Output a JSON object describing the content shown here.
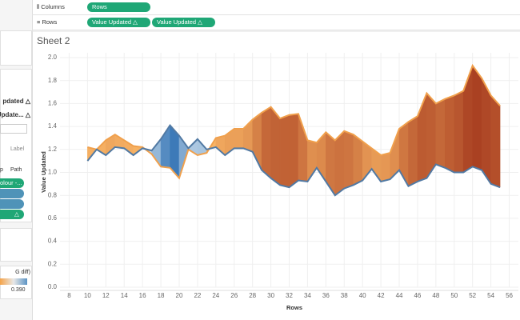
{
  "shelves": {
    "columns_label": "Columns",
    "columns_pills": [
      "Rows"
    ],
    "rows_label": "Rows",
    "rows_pills": [
      "Value Updated △",
      "Value Updated △"
    ]
  },
  "side_panel": {
    "field_1": "pdated △",
    "field_2": "Update... △",
    "mark_label": "Label",
    "mark_path": "Path",
    "mark_partial": "p",
    "color_pill": "olour -...",
    "pill_delta": "△",
    "legend_title": "G diff)",
    "legend_max": "0.390"
  },
  "chart_data": {
    "type": "area_between",
    "title": "Sheet 2",
    "y_label": "Value Updated",
    "x_label": "Rows",
    "x": [
      10,
      11,
      12,
      13,
      14,
      15,
      16,
      17,
      18,
      19,
      20,
      21,
      22,
      23,
      24,
      25,
      26,
      27,
      28,
      29,
      30,
      31,
      32,
      33,
      34,
      35,
      36,
      37,
      38,
      39,
      40,
      41,
      42,
      43,
      44,
      45,
      46,
      47,
      48,
      49,
      50,
      51,
      52,
      53,
      54,
      55
    ],
    "series": [
      {
        "color": "#f0a04c",
        "values": [
          1.22,
          1.2,
          1.28,
          1.33,
          1.28,
          1.23,
          1.22,
          1.16,
          1.05,
          1.04,
          0.95,
          1.2,
          1.15,
          1.17,
          1.3,
          1.32,
          1.38,
          1.38,
          1.46,
          1.52,
          1.57,
          1.47,
          1.5,
          1.51,
          1.28,
          1.26,
          1.35,
          1.28,
          1.36,
          1.33,
          1.27,
          1.21,
          1.15,
          1.17,
          1.38,
          1.44,
          1.49,
          1.69,
          1.6,
          1.64,
          1.67,
          1.71,
          1.93,
          1.82,
          1.67,
          1.58
        ]
      },
      {
        "color": "#5179a3",
        "values": [
          1.1,
          1.2,
          1.15,
          1.22,
          1.21,
          1.15,
          1.21,
          1.19,
          1.29,
          1.41,
          1.32,
          1.21,
          1.29,
          1.2,
          1.22,
          1.15,
          1.21,
          1.21,
          1.18,
          1.02,
          0.95,
          0.89,
          0.87,
          0.93,
          0.92,
          1.04,
          0.92,
          0.8,
          0.86,
          0.89,
          0.93,
          1.03,
          0.92,
          0.94,
          1.02,
          0.88,
          0.92,
          0.95,
          1.07,
          1.04,
          1.0,
          1.0,
          1.05,
          1.02,
          0.9,
          0.87
        ]
      }
    ],
    "fill_colors": {
      "orange_light": "#fbb867",
      "orange_dark": "#a63b1f",
      "blue_light": "#c8dbeb",
      "blue_dark": "#3d7ab8"
    },
    "xlim": [
      7,
      57
    ],
    "xticks": [
      8,
      10,
      12,
      14,
      16,
      18,
      20,
      22,
      24,
      26,
      28,
      30,
      32,
      34,
      36,
      38,
      40,
      42,
      44,
      46,
      48,
      50,
      52,
      54,
      56
    ],
    "ylim": [
      0,
      2.0
    ],
    "yticks": [
      {
        "value": 0,
        "label": "0.0"
      },
      0.2,
      0.4,
      0.6,
      0.8,
      {
        "value": 1,
        "label": "1.0"
      },
      1.2,
      1.4,
      1.6,
      1.8,
      {
        "value": 2,
        "label": "2.0"
      }
    ],
    "grid": true
  }
}
